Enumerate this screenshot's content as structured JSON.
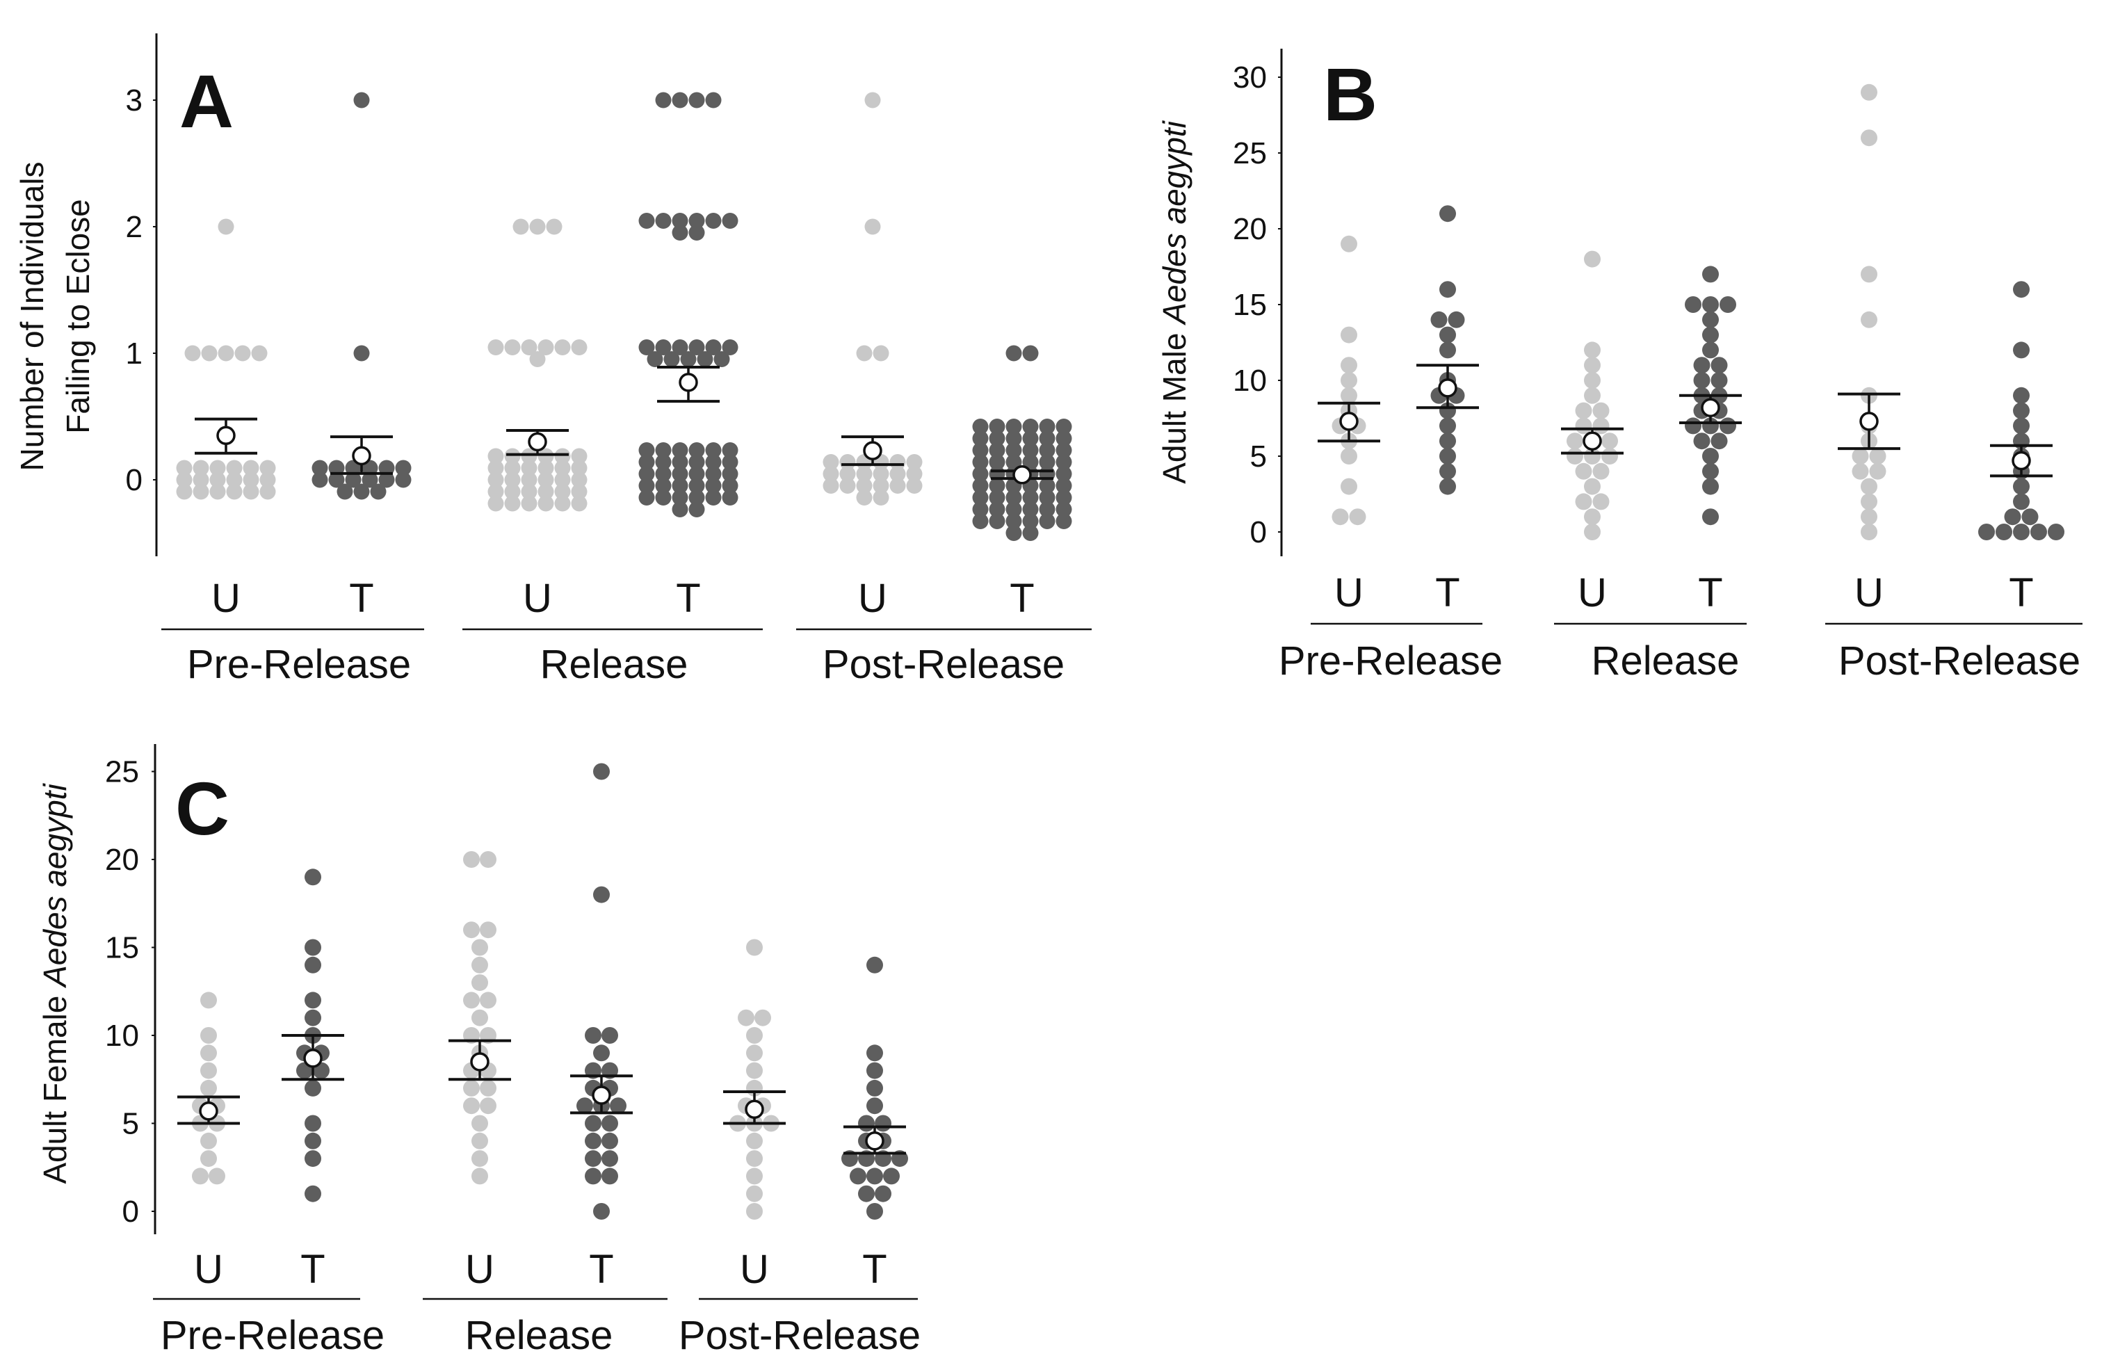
{
  "colors": {
    "untreated": "#c8c8c8",
    "treated": "#5e5e5e",
    "axis": "#111111",
    "mean_fill": "#ffffff"
  },
  "chart_data": [
    {
      "type": "scatter",
      "subtype": "beeswarm-with-mean-and-se",
      "panel": "A",
      "ylabel_lines": [
        "Number of Individuals",
        "Failing to Eclose"
      ],
      "ylabel_italic": "",
      "ylim": [
        -0.5,
        3.5
      ],
      "yticks": [
        0,
        1,
        2,
        3
      ],
      "periods": [
        {
          "name": "Pre-Release",
          "groups": [
            {
              "label": "U",
              "mean": 0.35,
              "se_low": 0.21,
              "se_high": 0.48,
              "values": [
                0,
                0,
                0,
                0,
                0,
                0,
                0,
                0,
                0,
                0,
                0,
                0,
                0,
                0,
                0,
                0,
                0,
                0,
                1,
                1,
                1,
                1,
                1,
                2
              ]
            },
            {
              "label": "T",
              "mean": 0.19,
              "se_low": 0.05,
              "se_high": 0.34,
              "values": [
                0,
                0,
                0,
                0,
                0,
                0,
                0,
                0,
                0,
                0,
                0,
                0,
                0,
                0,
                0,
                1,
                3
              ]
            }
          ]
        },
        {
          "name": "Release",
          "groups": [
            {
              "label": "U",
              "mean": 0.3,
              "se_low": 0.2,
              "se_high": 0.39,
              "values": [
                0,
                0,
                0,
                0,
                0,
                0,
                0,
                0,
                0,
                0,
                0,
                0,
                0,
                0,
                0,
                0,
                0,
                0,
                0,
                0,
                0,
                0,
                0,
                0,
                0,
                0,
                0,
                0,
                0,
                0,
                1,
                1,
                1,
                1,
                1,
                1,
                1,
                2,
                2,
                2
              ]
            },
            {
              "label": "T",
              "mean": 0.77,
              "se_low": 0.62,
              "se_high": 0.89,
              "values": [
                0,
                0,
                0,
                0,
                0,
                0,
                0,
                0,
                0,
                0,
                0,
                0,
                0,
                0,
                0,
                0,
                0,
                0,
                0,
                0,
                0,
                0,
                0,
                0,
                0,
                0,
                0,
                0,
                0,
                0,
                0,
                0,
                1,
                1,
                1,
                1,
                1,
                1,
                1,
                1,
                1,
                1,
                1,
                2,
                2,
                2,
                2,
                2,
                2,
                2,
                2,
                3,
                3,
                3,
                3
              ]
            }
          ]
        },
        {
          "name": "Post-Release",
          "groups": [
            {
              "label": "U",
              "mean": 0.23,
              "se_low": 0.12,
              "se_high": 0.34,
              "values": [
                0,
                0,
                0,
                0,
                0,
                0,
                0,
                0,
                0,
                0,
                0,
                0,
                0,
                0,
                0,
                0,
                0,
                0,
                0,
                0,
                1,
                1,
                2,
                3
              ]
            },
            {
              "label": "T",
              "mean": 0.04,
              "se_low": 0.01,
              "se_high": 0.07,
              "values": [
                0,
                0,
                0,
                0,
                0,
                0,
                0,
                0,
                0,
                0,
                0,
                0,
                0,
                0,
                0,
                0,
                0,
                0,
                0,
                0,
                0,
                0,
                0,
                0,
                0,
                0,
                0,
                0,
                0,
                0,
                0,
                0,
                0,
                0,
                0,
                0,
                0,
                0,
                0,
                0,
                0,
                0,
                0,
                0,
                0,
                0,
                0,
                0,
                0,
                0,
                0,
                0,
                0,
                0,
                0,
                0,
                1,
                1
              ]
            }
          ]
        }
      ]
    },
    {
      "type": "scatter",
      "subtype": "beeswarm-with-mean-and-se",
      "panel": "B",
      "ylabel_lines": [
        "Adult Male "
      ],
      "ylabel_italic": "Aedes aegypti",
      "ylim": [
        -2,
        32
      ],
      "yticks": [
        0,
        5,
        10,
        15,
        20,
        25,
        30
      ],
      "periods": [
        {
          "name": "Pre-Release",
          "groups": [
            {
              "label": "U",
              "mean": 7.3,
              "se_low": 6.0,
              "se_high": 8.5,
              "values": [
                1,
                1,
                3,
                5,
                6,
                7,
                7,
                8,
                9,
                10,
                11,
                13,
                19
              ]
            },
            {
              "label": "T",
              "mean": 9.5,
              "se_low": 8.2,
              "se_high": 11.0,
              "values": [
                3,
                4,
                5,
                6,
                7,
                8,
                9,
                9,
                10,
                12,
                13,
                14,
                14,
                16,
                21
              ]
            }
          ]
        },
        {
          "name": "Release",
          "groups": [
            {
              "label": "U",
              "mean": 6.0,
              "se_low": 5.2,
              "se_high": 6.8,
              "values": [
                0,
                1,
                2,
                2,
                3,
                4,
                4,
                5,
                5,
                5,
                6,
                6,
                6,
                7,
                7,
                8,
                8,
                9,
                10,
                11,
                12,
                18
              ]
            },
            {
              "label": "T",
              "mean": 8.2,
              "se_low": 7.2,
              "se_high": 9.0,
              "values": [
                1,
                3,
                4,
                5,
                6,
                6,
                7,
                7,
                7,
                8,
                8,
                9,
                9,
                10,
                10,
                11,
                11,
                12,
                13,
                14,
                15,
                15,
                15,
                17
              ]
            }
          ]
        },
        {
          "name": "Post-Release",
          "groups": [
            {
              "label": "U",
              "mean": 7.3,
              "se_low": 5.5,
              "se_high": 9.1,
              "values": [
                0,
                1,
                2,
                3,
                4,
                4,
                5,
                5,
                6,
                7,
                9,
                14,
                17,
                26,
                29
              ]
            },
            {
              "label": "T",
              "mean": 4.7,
              "se_low": 3.7,
              "se_high": 5.7,
              "values": [
                0,
                0,
                0,
                0,
                0,
                1,
                1,
                2,
                3,
                4,
                5,
                6,
                7,
                8,
                9,
                12,
                16
              ]
            }
          ]
        }
      ]
    },
    {
      "type": "scatter",
      "subtype": "beeswarm-with-mean-and-se",
      "panel": "C",
      "ylabel_lines": [
        "Adult Female "
      ],
      "ylabel_italic": "Aedes aegypti",
      "ylim": [
        -1,
        26.5
      ],
      "yticks": [
        0,
        5,
        10,
        15,
        20,
        25
      ],
      "periods": [
        {
          "name": "Pre-Release",
          "groups": [
            {
              "label": "U",
              "mean": 5.7,
              "se_low": 5.0,
              "se_high": 6.5,
              "values": [
                2,
                2,
                3,
                4,
                5,
                5,
                6,
                6,
                7,
                8,
                9,
                10,
                12
              ]
            },
            {
              "label": "T",
              "mean": 8.7,
              "se_low": 7.5,
              "se_high": 10.0,
              "values": [
                1,
                3,
                4,
                5,
                7,
                8,
                8,
                9,
                9,
                10,
                11,
                12,
                14,
                15,
                19
              ]
            }
          ]
        },
        {
          "name": "Release",
          "groups": [
            {
              "label": "U",
              "mean": 8.5,
              "se_low": 7.5,
              "se_high": 9.7,
              "values": [
                2,
                3,
                4,
                5,
                6,
                6,
                7,
                7,
                8,
                8,
                9,
                10,
                10,
                11,
                12,
                12,
                13,
                14,
                15,
                16,
                16,
                20,
                20
              ]
            },
            {
              "label": "T",
              "mean": 6.6,
              "se_low": 5.6,
              "se_high": 7.7,
              "values": [
                0,
                2,
                2,
                3,
                3,
                4,
                4,
                5,
                5,
                6,
                6,
                6,
                7,
                7,
                8,
                8,
                9,
                10,
                10,
                18,
                25
              ]
            }
          ]
        },
        {
          "name": "Post-Release",
          "groups": [
            {
              "label": "U",
              "mean": 5.8,
              "se_low": 5.0,
              "se_high": 6.8,
              "values": [
                0,
                1,
                2,
                3,
                4,
                5,
                5,
                5,
                6,
                6,
                7,
                8,
                9,
                10,
                11,
                11,
                15
              ]
            },
            {
              "label": "T",
              "mean": 4.0,
              "se_low": 3.3,
              "se_high": 4.8,
              "values": [
                0,
                1,
                1,
                2,
                2,
                2,
                3,
                3,
                3,
                3,
                4,
                4,
                5,
                5,
                6,
                7,
                8,
                9,
                14
              ]
            }
          ]
        }
      ]
    }
  ]
}
